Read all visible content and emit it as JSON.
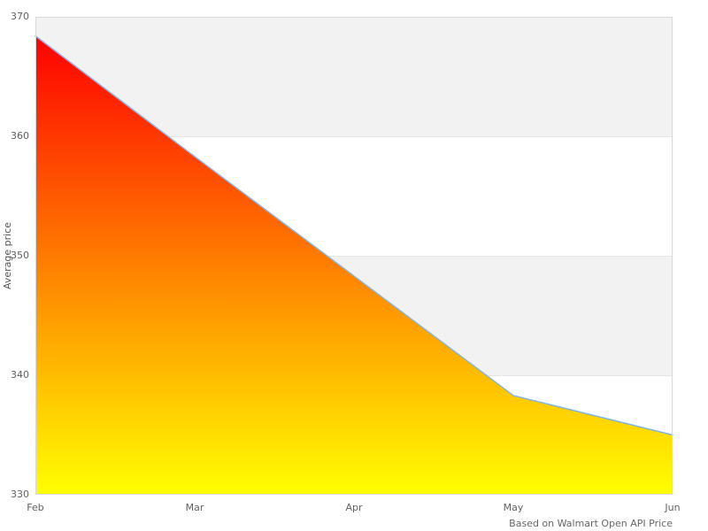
{
  "chart_data": {
    "type": "area",
    "title": "",
    "categories": [
      "Feb",
      "Mar",
      "Apr",
      "May",
      "Jun"
    ],
    "series": [
      {
        "name": "Average price",
        "values": [
          368.4,
          358.3,
          348.3,
          338.3,
          335.0
        ]
      }
    ],
    "xlabel": "",
    "ylabel": "Average price",
    "ylim": [
      330,
      370
    ],
    "yticks": [
      330,
      340,
      350,
      360,
      370
    ],
    "grid": "horizontal gridlines at each y tick, alternating gray/white bands between ticks starting gray at top",
    "legend": "none",
    "caption": "Based on Walmart Open API Price",
    "colors": {
      "line": "#7cb5ec",
      "area_gradient_top": "#ff0000",
      "area_gradient_bottom": "#ffff00",
      "alternate_band": "#f2f2f2",
      "gridline": "#e6e6e6",
      "plot_border": "#d8d8d8",
      "tick_label": "#606060",
      "axis_title": "#555555",
      "caption_text": "#666666",
      "background": "#ffffff"
    }
  }
}
